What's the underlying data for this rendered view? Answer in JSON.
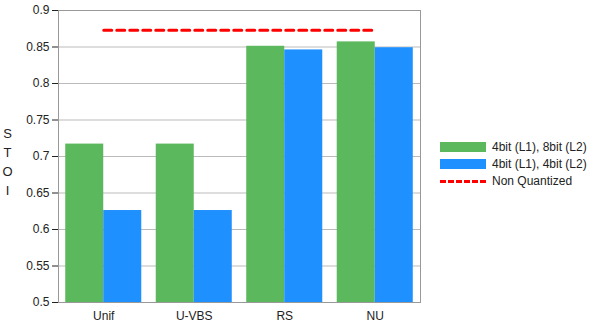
{
  "chart_data": {
    "type": "bar",
    "categories": [
      "Unif",
      "U-VBS",
      "RS",
      "NU"
    ],
    "series": [
      {
        "name": "4bit (L1), 8bit (L2)",
        "color": "#5cb85c",
        "values": [
          0.717,
          0.717,
          0.851,
          0.857
        ]
      },
      {
        "name": "4bit (L1), 4bit (L2)",
        "color": "#1e90ff",
        "values": [
          0.626,
          0.626,
          0.846,
          0.849
        ]
      },
      {
        "name": "Non Quantized",
        "type": "line",
        "line_style": "dashed",
        "color": "#ff0000",
        "values": [
          0.873,
          0.873,
          0.873,
          0.873
        ]
      }
    ],
    "y_label": "STOI",
    "ylim": [
      0.5,
      0.9
    ],
    "yticks": [
      0.5,
      0.55,
      0.6,
      0.65,
      0.7,
      0.75,
      0.8,
      0.85,
      0.9
    ],
    "grid": true,
    "legend": "right"
  }
}
